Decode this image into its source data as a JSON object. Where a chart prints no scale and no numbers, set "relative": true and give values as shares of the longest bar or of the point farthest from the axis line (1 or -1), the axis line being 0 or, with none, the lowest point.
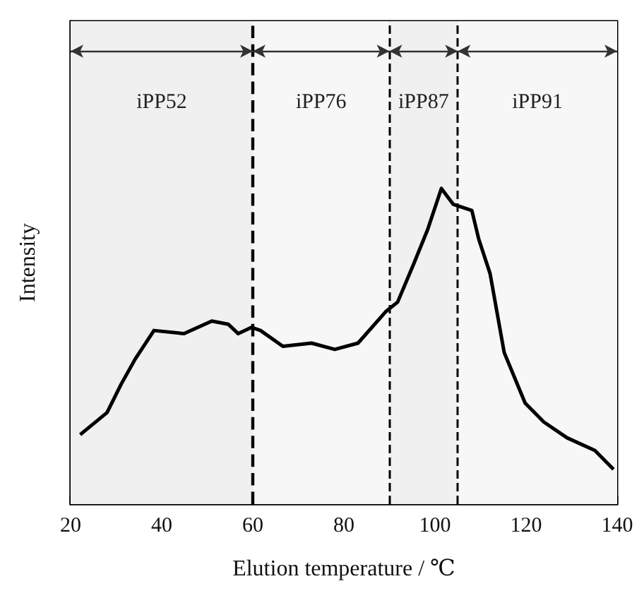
{
  "chart_data": {
    "type": "line",
    "xlabel": "Elution temperature / ℃",
    "ylabel": "Intensity",
    "relative": true,
    "xlim": [
      20,
      140
    ],
    "xticks": [
      20,
      40,
      60,
      80,
      100,
      120,
      140
    ],
    "series": [
      {
        "color": "#000000",
        "x": [
          22.1,
          28.0,
          31.1,
          34.2,
          38.3,
          44.9,
          51.0,
          54.6,
          56.8,
          59.7,
          61.7,
          66.6,
          72.9,
          78.0,
          83.1,
          89.2,
          91.8,
          95.3,
          98.4,
          101.4,
          104.0,
          108.1,
          109.6,
          112.1,
          115.2,
          119.8,
          123.9,
          129.0,
          135.1,
          139.2
        ],
        "values": [
          0.22,
          0.29,
          0.38,
          0.46,
          0.55,
          0.54,
          0.58,
          0.57,
          0.54,
          0.56,
          0.55,
          0.5,
          0.51,
          0.49,
          0.51,
          0.61,
          0.64,
          0.76,
          0.87,
          1.0,
          0.95,
          0.93,
          0.84,
          0.73,
          0.48,
          0.32,
          0.26,
          0.21,
          0.17,
          0.11
        ]
      }
    ],
    "ref_lines": [
      {
        "axis": "x",
        "value": 60,
        "color": "#000000",
        "line_style": "dashed"
      },
      {
        "axis": "x",
        "value": 90,
        "color": "#000000",
        "line_style": "dashed"
      },
      {
        "axis": "x",
        "value": 105,
        "color": "#000000",
        "line_style": "dashed"
      }
    ],
    "bands": [
      {
        "axis": "x",
        "from": 20,
        "to": 60,
        "label": "iPP52",
        "color": "#f0f0f0"
      },
      {
        "axis": "x",
        "from": 60,
        "to": 90,
        "label": "iPP76",
        "color": "#f7f7f7"
      },
      {
        "axis": "x",
        "from": 90,
        "to": 105,
        "label": "iPP87",
        "color": "#f0f0f0"
      },
      {
        "axis": "x",
        "from": 105,
        "to": 140,
        "label": "iPP91",
        "color": "#f7f7f7"
      }
    ]
  }
}
